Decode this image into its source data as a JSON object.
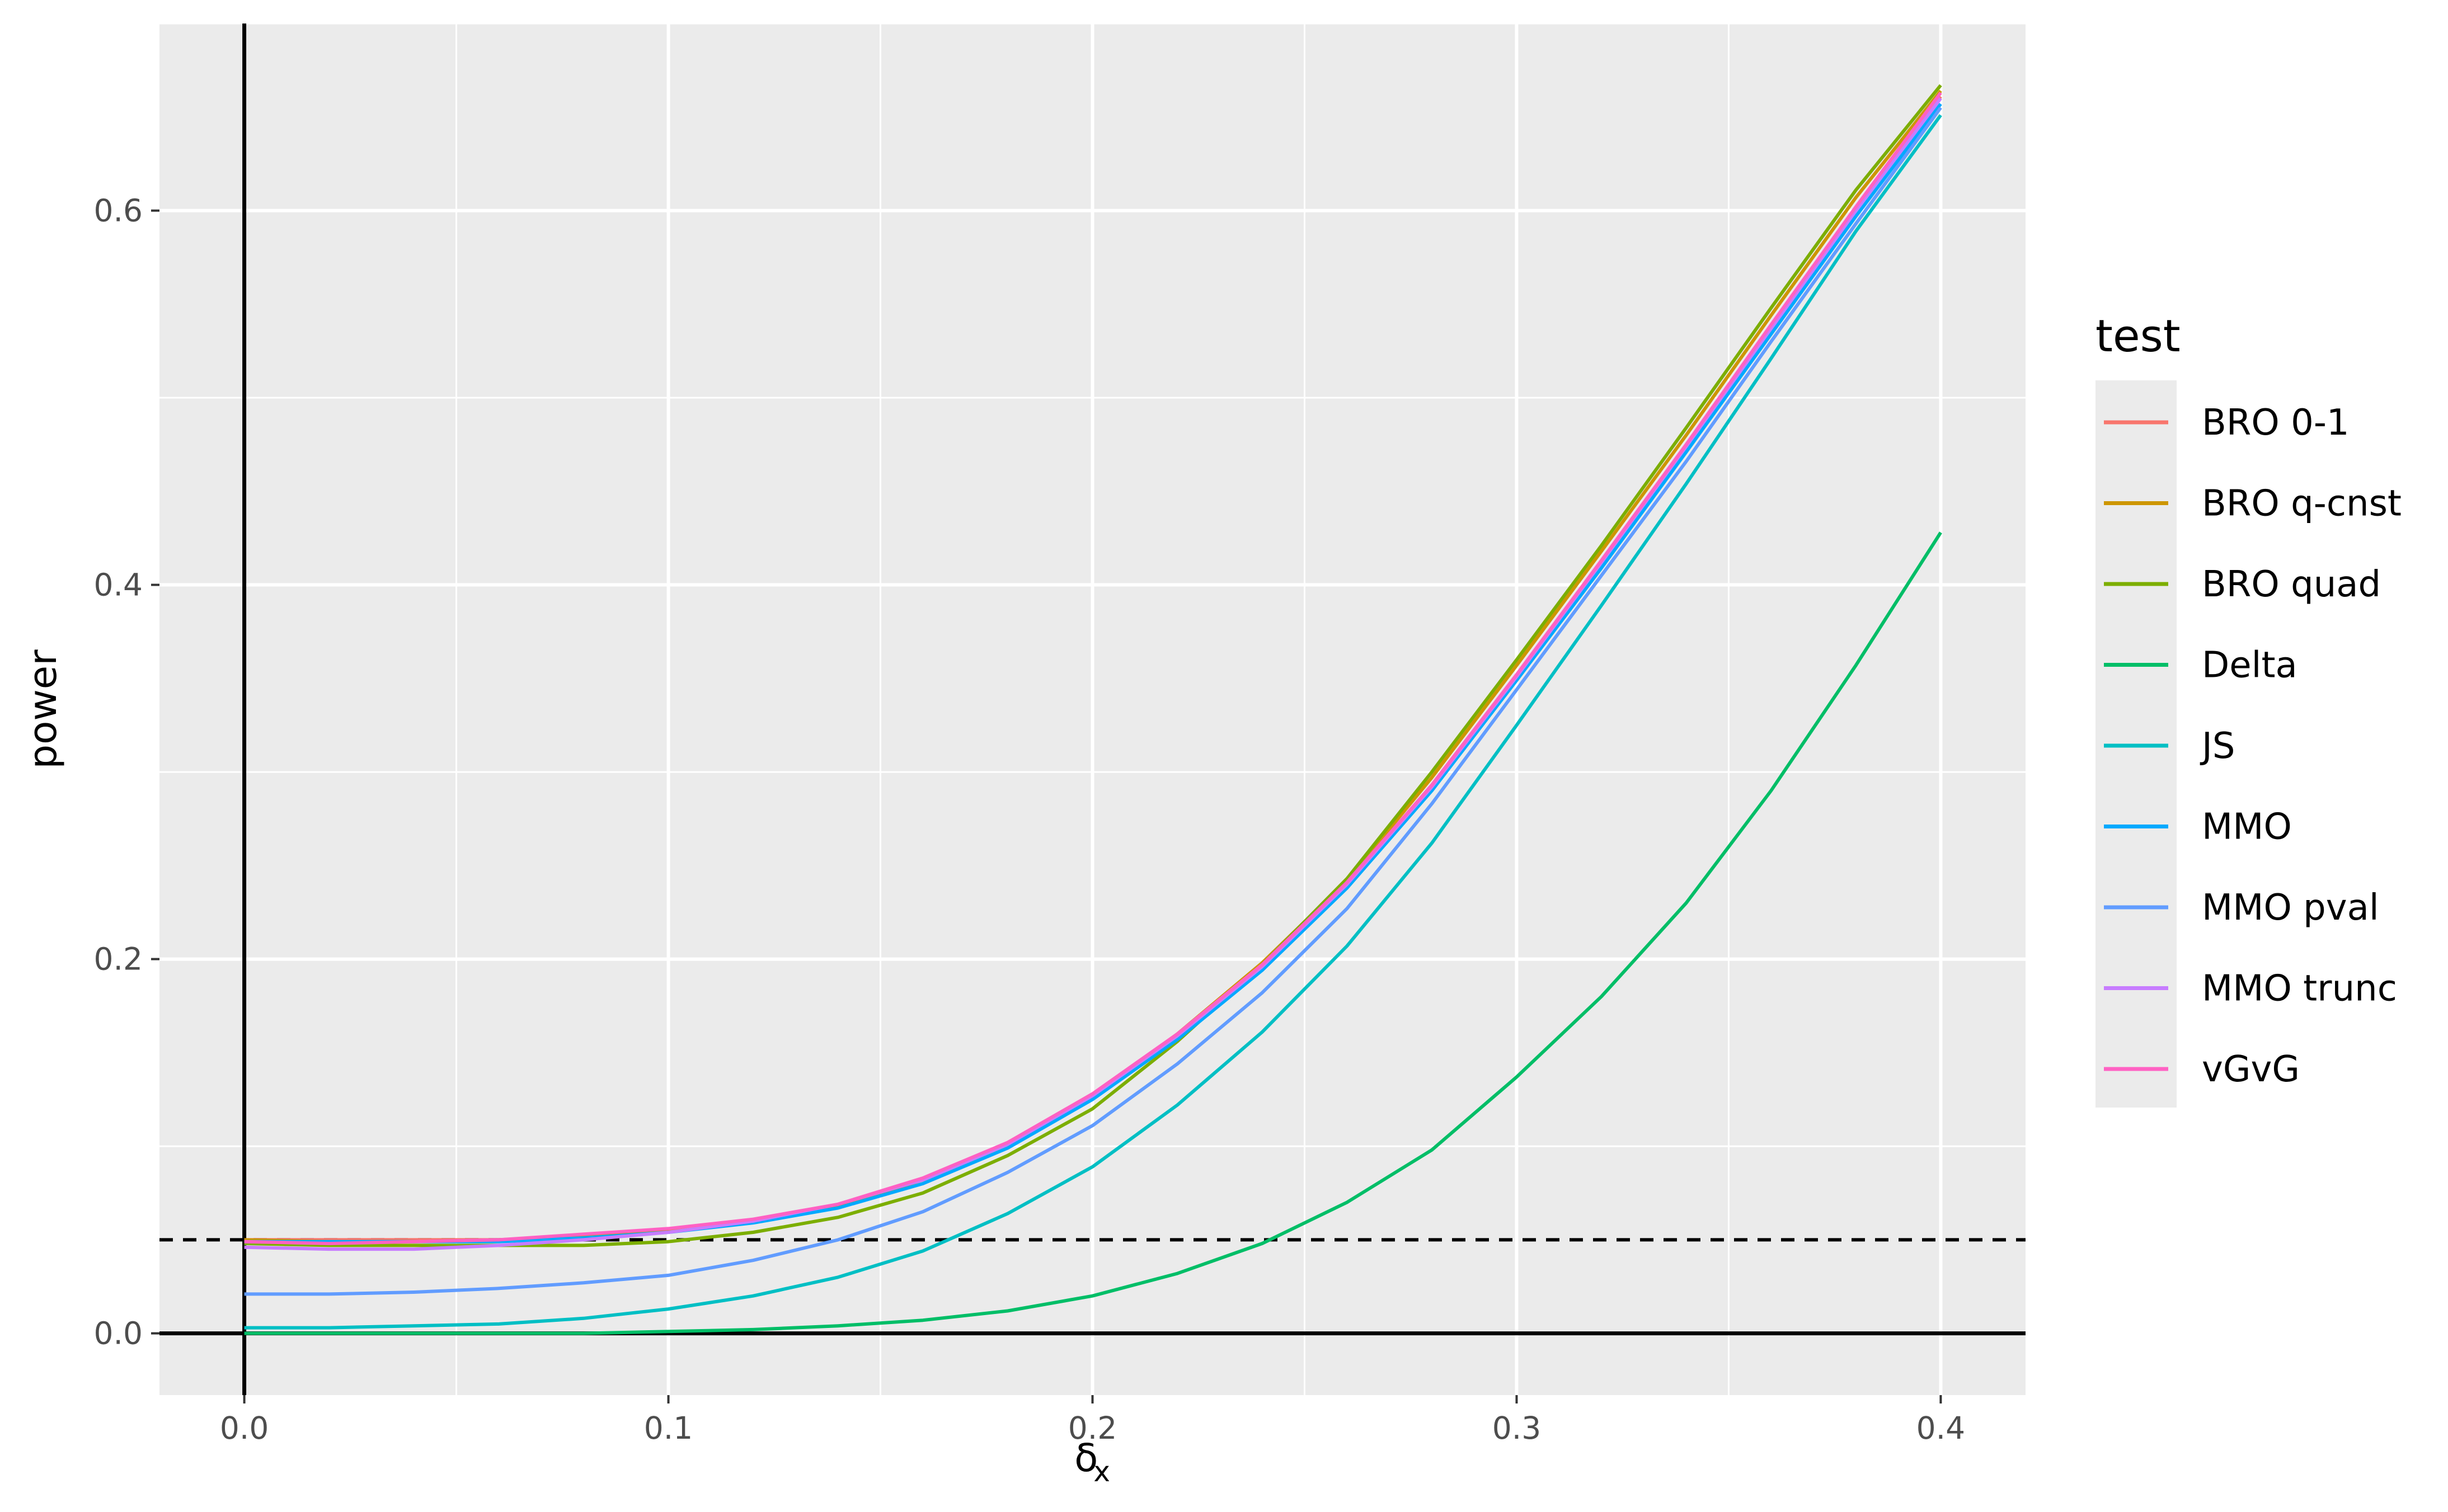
{
  "chart_data": {
    "type": "line",
    "xlabel": "δ",
    "xlabel_sub": "x",
    "ylabel": "power",
    "xlim": [
      -0.02,
      0.42
    ],
    "ylim": [
      -0.033,
      0.7
    ],
    "x_ticks": [
      0.0,
      0.1,
      0.2,
      0.3,
      0.4
    ],
    "x_tick_labels": [
      "0.0",
      "0.1",
      "0.2",
      "0.3",
      "0.4"
    ],
    "y_ticks": [
      0.0,
      0.2,
      0.4,
      0.6
    ],
    "y_tick_labels": [
      "0.0",
      "0.2",
      "0.4",
      "0.6"
    ],
    "grid": true,
    "reference_lines": {
      "hline_dashed": 0.05,
      "hline_solid": 0.0,
      "vline_solid": 0.0
    },
    "legend": {
      "title": "test",
      "position": "right"
    },
    "x": [
      0.0,
      0.02,
      0.04,
      0.06,
      0.08,
      0.1,
      0.12,
      0.14,
      0.16,
      0.18,
      0.2,
      0.22,
      0.24,
      0.26,
      0.28,
      0.3,
      0.32,
      0.34,
      0.36,
      0.38,
      0.4
    ],
    "series": [
      {
        "name": "BRO 0-1",
        "color": "#F8766D",
        "values": [
          0.05,
          0.05,
          0.05,
          0.05,
          0.052,
          0.055,
          0.06,
          0.068,
          0.082,
          0.101,
          0.127,
          0.159,
          0.196,
          0.24,
          0.293,
          0.352,
          0.413,
          0.475,
          0.538,
          0.601,
          0.661
        ]
      },
      {
        "name": "BRO q-cnst",
        "color": "#CD9600",
        "values": [
          0.05,
          0.049,
          0.049,
          0.05,
          0.052,
          0.055,
          0.06,
          0.068,
          0.082,
          0.101,
          0.127,
          0.16,
          0.198,
          0.242,
          0.297,
          0.357,
          0.418,
          0.48,
          0.544,
          0.607,
          0.664
        ]
      },
      {
        "name": "BRO quad",
        "color": "#7CAE00",
        "values": [
          0.048,
          0.047,
          0.047,
          0.047,
          0.047,
          0.049,
          0.054,
          0.062,
          0.075,
          0.095,
          0.12,
          0.156,
          0.197,
          0.243,
          0.3,
          0.36,
          0.421,
          0.484,
          0.548,
          0.611,
          0.667
        ]
      },
      {
        "name": "Delta",
        "color": "#00BE67",
        "values": [
          0.0,
          0.0,
          0.0,
          0.0,
          0.0,
          0.001,
          0.002,
          0.004,
          0.007,
          0.012,
          0.02,
          0.032,
          0.048,
          0.07,
          0.098,
          0.137,
          0.18,
          0.23,
          0.29,
          0.357,
          0.428
        ]
      },
      {
        "name": "JS",
        "color": "#00BFC4",
        "values": [
          0.003,
          0.003,
          0.004,
          0.005,
          0.008,
          0.013,
          0.02,
          0.03,
          0.044,
          0.064,
          0.089,
          0.122,
          0.161,
          0.207,
          0.262,
          0.325,
          0.389,
          0.454,
          0.521,
          0.589,
          0.651
        ]
      },
      {
        "name": "MMO",
        "color": "#00A9FF",
        "values": [
          0.049,
          0.049,
          0.049,
          0.049,
          0.051,
          0.054,
          0.059,
          0.067,
          0.08,
          0.099,
          0.125,
          0.157,
          0.194,
          0.238,
          0.29,
          0.349,
          0.409,
          0.471,
          0.534,
          0.597,
          0.657
        ]
      },
      {
        "name": "MMO pval",
        "color": "#619CFF",
        "values": [
          0.021,
          0.021,
          0.022,
          0.024,
          0.027,
          0.031,
          0.039,
          0.05,
          0.065,
          0.086,
          0.111,
          0.144,
          0.182,
          0.227,
          0.283,
          0.344,
          0.405,
          0.466,
          0.53,
          0.593,
          0.655
        ]
      },
      {
        "name": "MMO trunc",
        "color": "#C77CFF",
        "values": [
          0.046,
          0.045,
          0.045,
          0.047,
          0.05,
          0.054,
          0.06,
          0.069,
          0.082,
          0.101,
          0.127,
          0.159,
          0.196,
          0.24,
          0.292,
          0.351,
          0.412,
          0.474,
          0.537,
          0.6,
          0.66
        ]
      },
      {
        "name": "vGvG",
        "color": "#FF61C3",
        "values": [
          0.049,
          0.048,
          0.049,
          0.05,
          0.053,
          0.056,
          0.061,
          0.069,
          0.083,
          0.102,
          0.128,
          0.16,
          0.197,
          0.241,
          0.293,
          0.352,
          0.413,
          0.475,
          0.539,
          0.602,
          0.663
        ]
      }
    ]
  }
}
